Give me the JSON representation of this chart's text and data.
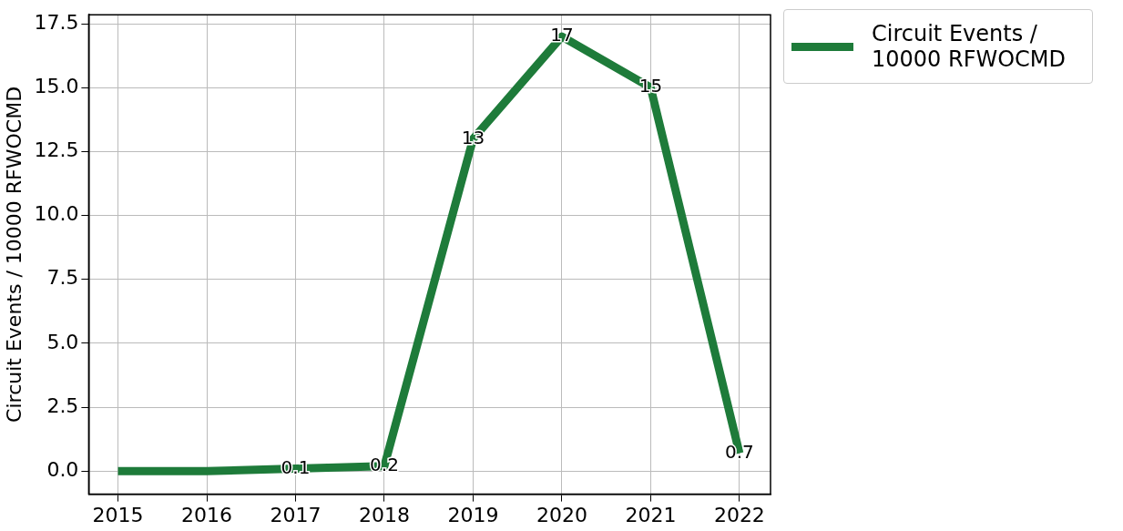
{
  "chart_data": {
    "type": "line",
    "ylabel": "Circuit Events / 10000 RFWOCMD",
    "x": [
      2015,
      2016,
      2017,
      2018,
      2019,
      2020,
      2021,
      2022
    ],
    "series": [
      {
        "name": "Circuit Events / 10000 RFWOCMD",
        "color": "#1e7b3a",
        "values": [
          0,
          0,
          0.1,
          0.2,
          13,
          17,
          15,
          0.7
        ],
        "value_labels": [
          null,
          null,
          "0.1",
          "0.2",
          "13",
          "17",
          "15",
          "0.7"
        ]
      }
    ],
    "xlim": [
      2014.67,
      2022.35
    ],
    "xticks": [
      2015,
      2016,
      2017,
      2018,
      2019,
      2020,
      2021,
      2022
    ],
    "ylim": [
      -0.9,
      17.85
    ],
    "yticks": [
      {
        "value": 0,
        "label": "0.0"
      },
      {
        "value": 2.5,
        "label": "2.5"
      },
      {
        "value": 5,
        "label": "5.0"
      },
      {
        "value": 7.5,
        "label": "7.5"
      },
      {
        "value": 10,
        "label": "10.0"
      },
      {
        "value": 12.5,
        "label": "12.5"
      },
      {
        "value": 15,
        "label": "15.0"
      },
      {
        "value": 17.5,
        "label": "17.5"
      }
    ],
    "grid": true,
    "legend": "right",
    "marker": "none",
    "line_style": "solid"
  }
}
